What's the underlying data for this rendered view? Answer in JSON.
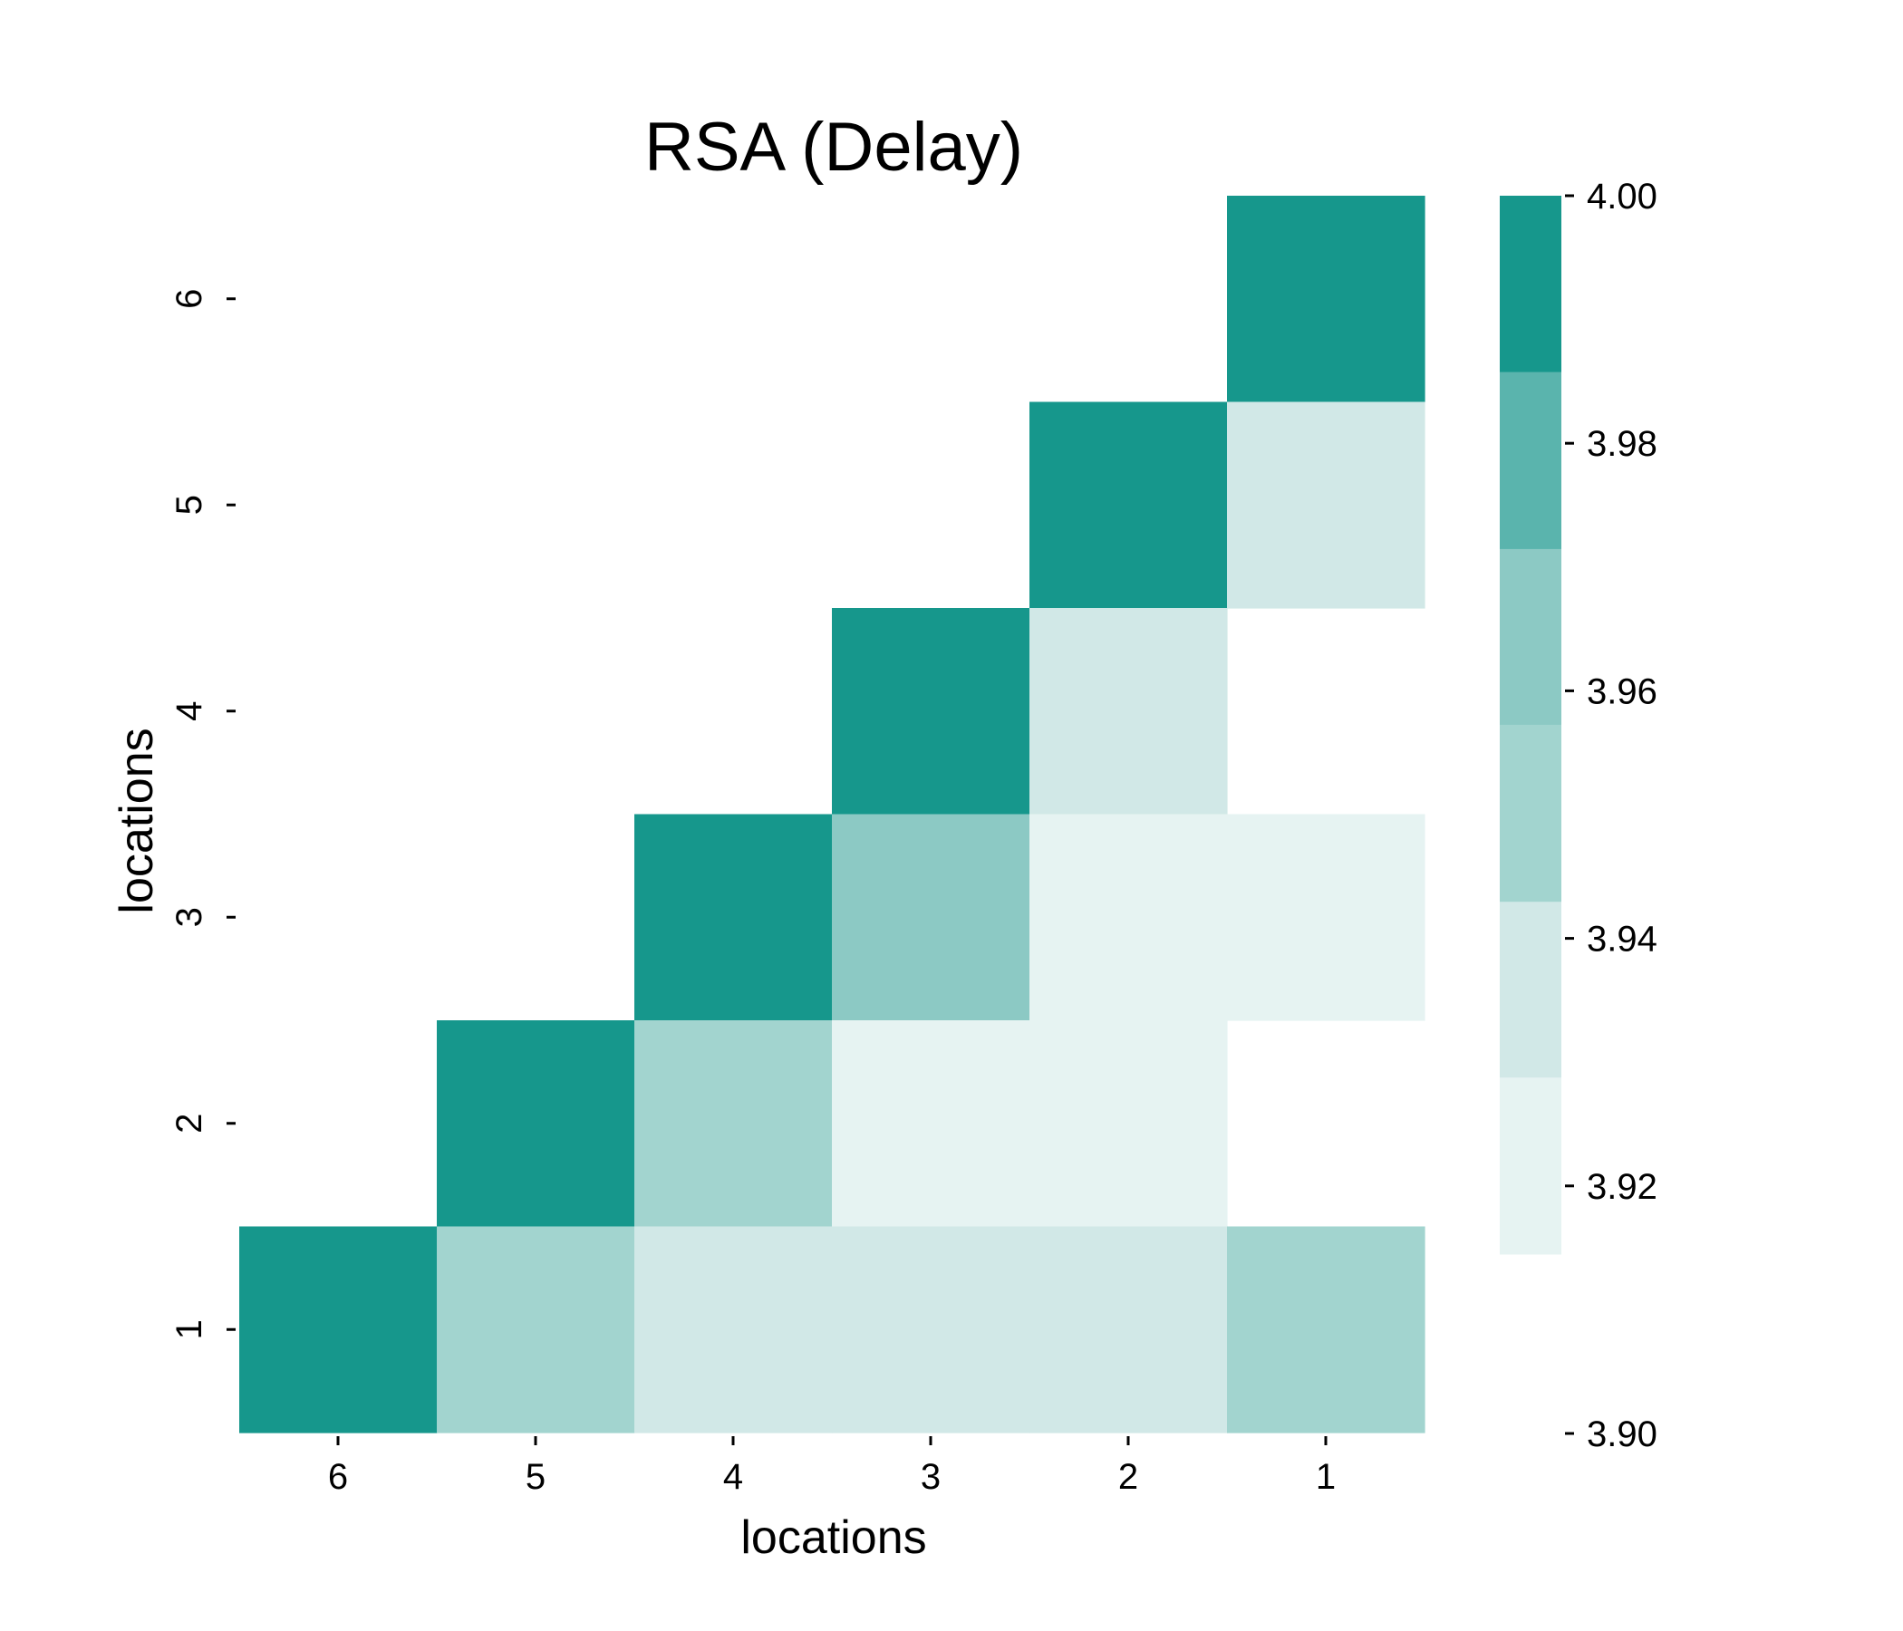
{
  "chart_data": {
    "type": "heatmap",
    "title": "RSA (Delay)",
    "xlabel": "locations",
    "ylabel": "locations",
    "x_categories": [
      "6",
      "5",
      "4",
      "3",
      "2",
      "1"
    ],
    "y_categories": [
      "6",
      "5",
      "4",
      "3",
      "2",
      "1"
    ],
    "cells": [
      {
        "row": "6",
        "col": "1",
        "value": 4.0
      },
      {
        "row": "5",
        "col": "2",
        "value": 4.0
      },
      {
        "row": "5",
        "col": "1",
        "value": 3.934
      },
      {
        "row": "4",
        "col": "3",
        "value": 4.0
      },
      {
        "row": "4",
        "col": "2",
        "value": 3.934
      },
      {
        "row": "3",
        "col": "4",
        "value": 4.0
      },
      {
        "row": "3",
        "col": "3",
        "value": 3.964
      },
      {
        "row": "3",
        "col": "2",
        "value": 3.921
      },
      {
        "row": "3",
        "col": "1",
        "value": 3.921
      },
      {
        "row": "2",
        "col": "5",
        "value": 4.0
      },
      {
        "row": "2",
        "col": "4",
        "value": 3.95
      },
      {
        "row": "2",
        "col": "3",
        "value": 3.921
      },
      {
        "row": "2",
        "col": "2",
        "value": 3.921
      },
      {
        "row": "1",
        "col": "6",
        "value": 4.0
      },
      {
        "row": "1",
        "col": "5",
        "value": 3.95
      },
      {
        "row": "1",
        "col": "4",
        "value": 3.934
      },
      {
        "row": "1",
        "col": "3",
        "value": 3.934
      },
      {
        "row": "1",
        "col": "2",
        "value": 3.934
      },
      {
        "row": "1",
        "col": "1",
        "value": 3.95
      }
    ],
    "colorbar": {
      "ticks": [
        "4.00",
        "3.98",
        "3.96",
        "3.94",
        "3.92",
        "3.90"
      ],
      "tick_values": [
        4.0,
        3.98,
        3.96,
        3.94,
        3.92,
        3.9
      ],
      "range": [
        3.9,
        4.0
      ],
      "filled_range": [
        3.9145,
        4.0
      ],
      "bins": [
        {
          "from": 3.9145,
          "to": 3.9288,
          "color": "#e6f3f2"
        },
        {
          "from": 3.9288,
          "to": 3.943,
          "color": "#d1e8e7"
        },
        {
          "from": 3.943,
          "to": 3.9573,
          "color": "#a2d4cf"
        },
        {
          "from": 3.9573,
          "to": 3.9715,
          "color": "#8cc9c4"
        },
        {
          "from": 3.9715,
          "to": 3.9858,
          "color": "#5ab4ad"
        },
        {
          "from": 3.9858,
          "to": 4.0,
          "color": "#16978c"
        }
      ]
    },
    "grid": false,
    "legend": "colorbar-right"
  }
}
